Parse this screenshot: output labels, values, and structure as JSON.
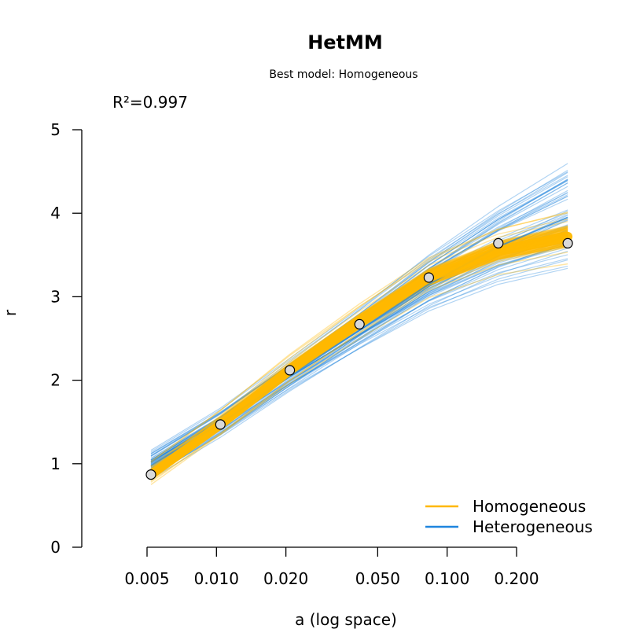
{
  "chart_data": {
    "type": "line",
    "title": "HetMM",
    "subtitle": "Best model: Homogeneous",
    "annotation": "R²=0.997",
    "xlabel": "a (log space)",
    "ylabel": "r",
    "x_scale": "log",
    "xlim": [
      0.005,
      0.3
    ],
    "ylim": [
      0,
      5
    ],
    "x_ticks": [
      0.005,
      0.01,
      0.02,
      0.05,
      0.1,
      0.2
    ],
    "x_tick_labels": [
      "0.005",
      "0.010",
      "0.020",
      "0.050",
      "0.100",
      "0.200"
    ],
    "y_ticks": [
      0,
      1,
      2,
      3,
      4,
      5
    ],
    "y_tick_labels": [
      "0",
      "1",
      "2",
      "3",
      "4",
      "5"
    ],
    "grid": false,
    "legend_position": "bottom-right",
    "colors": {
      "Homogeneous": "#FFB800",
      "Heterogeneous": "#1F85DE",
      "points": "#D9D9D9"
    },
    "observed": {
      "x": [
        0.0052,
        0.0104,
        0.0208,
        0.0417,
        0.0833,
        0.1667,
        0.3333
      ],
      "y": [
        0.87,
        1.47,
        2.12,
        2.67,
        3.23,
        3.64,
        3.64
      ]
    },
    "series": [
      {
        "name": "Homogeneous",
        "x": [
          0.0052,
          0.0104,
          0.0208,
          0.0417,
          0.0833,
          0.1667,
          0.3333
        ],
        "y": [
          0.87,
          1.47,
          2.12,
          2.7,
          3.23,
          3.55,
          3.72
        ]
      },
      {
        "name": "Heterogeneous",
        "x": [
          0.0052,
          0.0104,
          0.0208,
          0.0417,
          0.0833,
          0.1667,
          0.3333
        ],
        "y": [
          0.98,
          1.48,
          2.05,
          2.6,
          3.15,
          3.6,
          3.95
        ]
      }
    ]
  }
}
